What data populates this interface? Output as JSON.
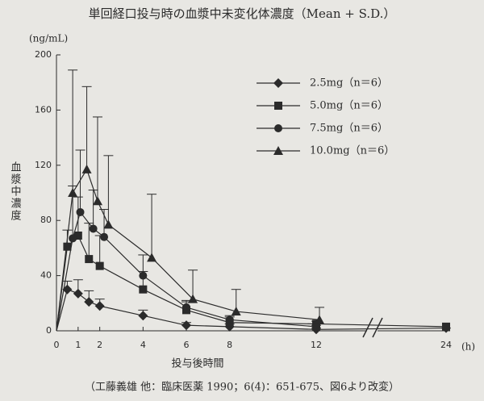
{
  "chart_data": {
    "type": "line",
    "title": "単回経口投与時の血漿中未変化体濃度（Mean + S.D.）",
    "y_unit": "(ng/mL)",
    "x_unit": "(h)",
    "y_label": "血漿中濃度",
    "x_label": "投与後時間",
    "source": "（工藤義雄 他：臨床医薬 1990；6(4)：651-675、図6より改変）",
    "xlim": [
      0,
      24
    ],
    "xticks": [
      0,
      1,
      2,
      4,
      6,
      8,
      12,
      24
    ],
    "ylim": [
      0,
      200
    ],
    "yticks": [
      0,
      40,
      80,
      120,
      160,
      200
    ],
    "axis_break": true,
    "legend": "upper-right",
    "color": "#2b2b2b",
    "series": [
      {
        "name": "2.5mg（n＝6）",
        "marker": "diamond",
        "x": [
          0,
          0.5,
          1,
          1.5,
          2,
          4,
          6,
          8,
          12,
          24
        ],
        "values": [
          0,
          30,
          27,
          21,
          18,
          11,
          4,
          3,
          1,
          2
        ],
        "errors": [
          null,
          6,
          10,
          8,
          5,
          4,
          2,
          2,
          1,
          null
        ]
      },
      {
        "name": "5.0mg（n＝6）",
        "marker": "square",
        "x": [
          0,
          0.5,
          1,
          1.5,
          2,
          4,
          6,
          8,
          12,
          24
        ],
        "values": [
          0,
          61,
          69,
          52,
          47,
          30,
          15,
          6,
          5,
          3
        ],
        "errors": [
          null,
          12,
          28,
          26,
          22,
          13,
          6,
          4,
          2,
          null
        ]
      },
      {
        "name": "7.5mg（n＝6）",
        "marker": "circle",
        "x": [
          0,
          0.75,
          1.1,
          1.7,
          2.2,
          4,
          6,
          8,
          12
        ],
        "values": [
          0,
          67,
          86,
          74,
          68,
          40,
          17,
          8,
          3
        ],
        "errors": [
          null,
          38,
          45,
          28,
          20,
          15,
          5,
          3,
          1
        ]
      },
      {
        "name": "10.0mg（n＝6）",
        "marker": "triangle",
        "x": [
          0,
          0.75,
          1.4,
          1.9,
          2.4,
          4.4,
          6.3,
          8.3,
          12.3
        ],
        "values": [
          0,
          100,
          117,
          94,
          77,
          53,
          23,
          14,
          8
        ],
        "errors": [
          null,
          89,
          60,
          61,
          50,
          46,
          21,
          16,
          9
        ]
      }
    ]
  }
}
